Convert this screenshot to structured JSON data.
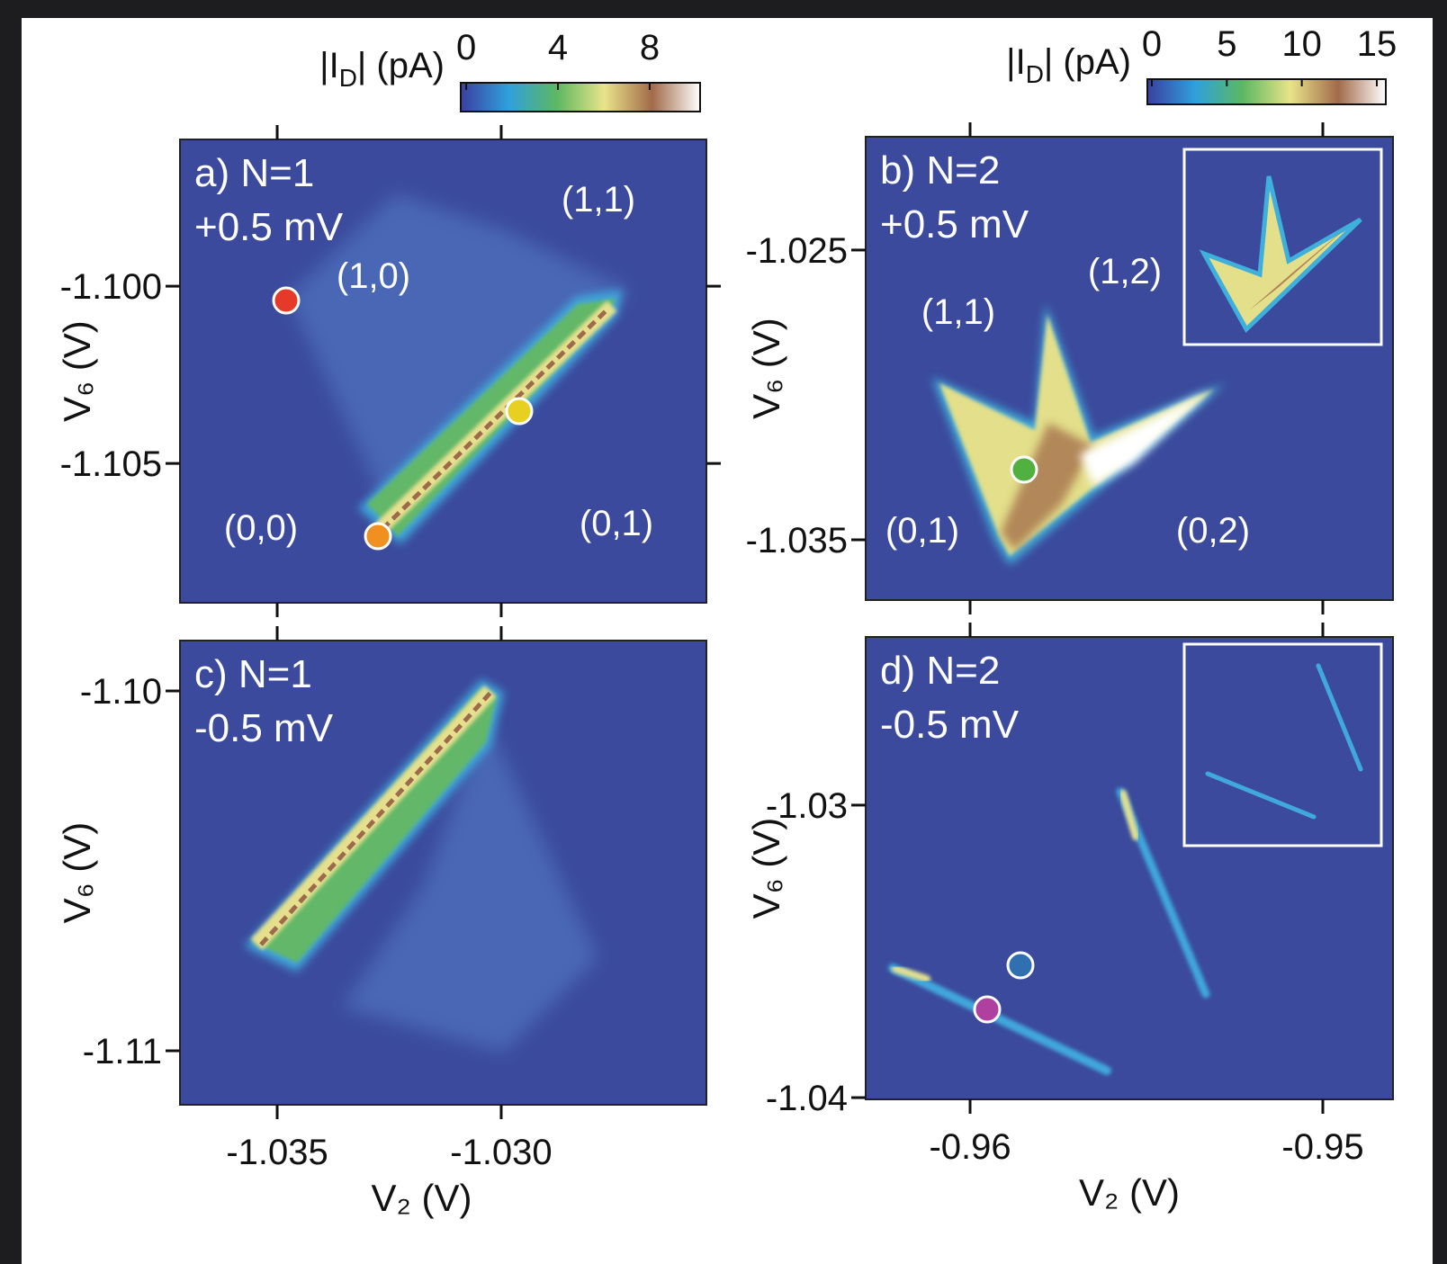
{
  "chart_data": [
    {
      "type": "heatmap",
      "title": "a) N=1",
      "subtitle": "+0.5 mV",
      "annotations": [
        "(1,1)",
        "(1,0)",
        "(0,0)",
        "(0,1)"
      ],
      "xlim": [
        -1.03717,
        -1.02542
      ],
      "xticks": [
        -1.035,
        -1.03
      ],
      "show_xtick_labels": false,
      "ylim": [
        -1.10893,
        -1.09586
      ],
      "yticks": [
        {
          "value": -1.1,
          "label": "-1.100"
        },
        -1.105
      ],
      "ylabel": "V₆ (V)",
      "colorbar": {
        "label": [
          "|I",
          "D",
          "| (pA)"
        ],
        "lim": [
          -0.24,
          10.2
        ],
        "ticks": [
          0,
          4,
          8
        ],
        "colors": [
          "#3a3fa0",
          "#2fa0dc",
          "#5cb862",
          "#e8e48a",
          "#a26a4a",
          "#ffffff"
        ]
      }
    },
    {
      "type": "heatmap",
      "title": "b) N=2",
      "subtitle": "+0.5 mV",
      "annotations": [
        "(1,2)",
        "(1,1)",
        "(0,1)",
        "(0,2)"
      ],
      "xlim": [
        -0.96296,
        -0.94801
      ],
      "xticks": [
        -0.96,
        -0.95
      ],
      "show_xtick_labels": false,
      "ylim": [
        -1.03708,
        -1.02109
      ],
      "yticks": [
        -1.025,
        -1.035
      ],
      "ylabel": "V₆ (V)",
      "colorbar": {
        "label": [
          "|I",
          "D",
          "| (pA)"
        ],
        "lim": [
          -0.3,
          15.6
        ],
        "ticks": [
          0,
          5,
          10,
          15
        ],
        "colors": [
          "#3a3fa0",
          "#2fa0dc",
          "#5cb862",
          "#e8e48a",
          "#a26a4a",
          "#ffffff"
        ]
      }
    },
    {
      "type": "heatmap",
      "title": "c) N=1",
      "subtitle": "-0.5 mV",
      "annotations": [],
      "xlim": [
        -1.03717,
        -1.02542
      ],
      "xticks": [
        -1.035,
        {
          "value": -1.03,
          "label": "-1.030"
        }
      ],
      "show_xtick_labels": true,
      "xlabel": "V₂ (V)",
      "ylim": [
        -1.1115,
        -1.0986
      ],
      "yticks": [
        {
          "value": -1.1,
          "label": "-1.10"
        },
        -1.11
      ],
      "ylabel": "V₆ (V)"
    },
    {
      "type": "heatmap",
      "title": "d) N=2",
      "subtitle": "-0.5 mV",
      "annotations": [],
      "xlim": [
        -0.96296,
        -0.94801
      ],
      "xticks": [
        -0.96,
        -0.95
      ],
      "show_xtick_labels": true,
      "xlabel": "V₂ (V)",
      "ylim": [
        -1.04006,
        -1.02425
      ],
      "yticks": [
        -1.03,
        -1.04
      ],
      "ylabel": "V₆ (V)"
    }
  ]
}
